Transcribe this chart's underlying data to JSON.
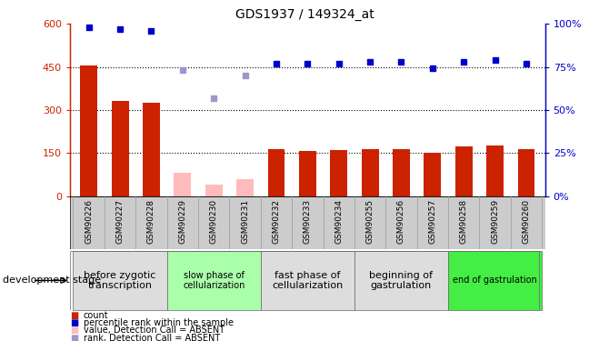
{
  "title": "GDS1937 / 149324_at",
  "samples": [
    "GSM90226",
    "GSM90227",
    "GSM90228",
    "GSM90229",
    "GSM90230",
    "GSM90231",
    "GSM90232",
    "GSM90233",
    "GSM90234",
    "GSM90255",
    "GSM90256",
    "GSM90257",
    "GSM90258",
    "GSM90259",
    "GSM90260"
  ],
  "count_values": [
    455,
    330,
    325,
    null,
    null,
    null,
    162,
    158,
    160,
    165,
    165,
    152,
    172,
    177,
    162
  ],
  "absent_values": [
    null,
    null,
    null,
    80,
    40,
    60,
    null,
    null,
    null,
    null,
    null,
    null,
    null,
    null,
    null
  ],
  "percentile_rank": [
    98,
    97,
    96,
    null,
    null,
    null,
    77,
    77,
    77,
    78,
    78,
    74,
    78,
    79,
    77
  ],
  "absent_rank": [
    null,
    null,
    null,
    73,
    57,
    70,
    null,
    null,
    null,
    null,
    null,
    null,
    null,
    null,
    null
  ],
  "bar_color_normal": "#cc2200",
  "bar_color_absent": "#ffbbbb",
  "dot_color_normal": "#0000cc",
  "dot_color_absent": "#9999cc",
  "ylim_left": [
    0,
    600
  ],
  "ylim_right": [
    0,
    100
  ],
  "yticks_left": [
    0,
    150,
    300,
    450,
    600
  ],
  "yticks_right": [
    0,
    25,
    50,
    75,
    100
  ],
  "ytick_labels_left": [
    "0",
    "150",
    "300",
    "450",
    "600"
  ],
  "ytick_labels_right": [
    "0%",
    "25%",
    "50%",
    "75%",
    "100%"
  ],
  "groups": [
    {
      "label": "before zygotic\ntranscription",
      "samples": [
        "GSM90226",
        "GSM90227",
        "GSM90228"
      ],
      "color": "#dddddd",
      "fontsize": 8
    },
    {
      "label": "slow phase of\ncellularization",
      "samples": [
        "GSM90229",
        "GSM90230",
        "GSM90231"
      ],
      "color": "#aaffaa",
      "fontsize": 7
    },
    {
      "label": "fast phase of\ncellularization",
      "samples": [
        "GSM90232",
        "GSM90233",
        "GSM90234"
      ],
      "color": "#dddddd",
      "fontsize": 8
    },
    {
      "label": "beginning of\ngastrulation",
      "samples": [
        "GSM90255",
        "GSM90256",
        "GSM90257"
      ],
      "color": "#dddddd",
      "fontsize": 8
    },
    {
      "label": "end of gastrulation",
      "samples": [
        "GSM90258",
        "GSM90259",
        "GSM90260"
      ],
      "color": "#44ee44",
      "fontsize": 7
    }
  ],
  "stage_label": "development stage",
  "legend_items": [
    {
      "label": "count",
      "color": "#cc2200"
    },
    {
      "label": "percentile rank within the sample",
      "color": "#0000cc"
    },
    {
      "label": "value, Detection Call = ABSENT",
      "color": "#ffbbbb"
    },
    {
      "label": "rank, Detection Call = ABSENT",
      "color": "#9999cc"
    }
  ],
  "xtick_row_color": "#cccccc",
  "plot_bg": "#ffffff",
  "spine_color": "#000000"
}
